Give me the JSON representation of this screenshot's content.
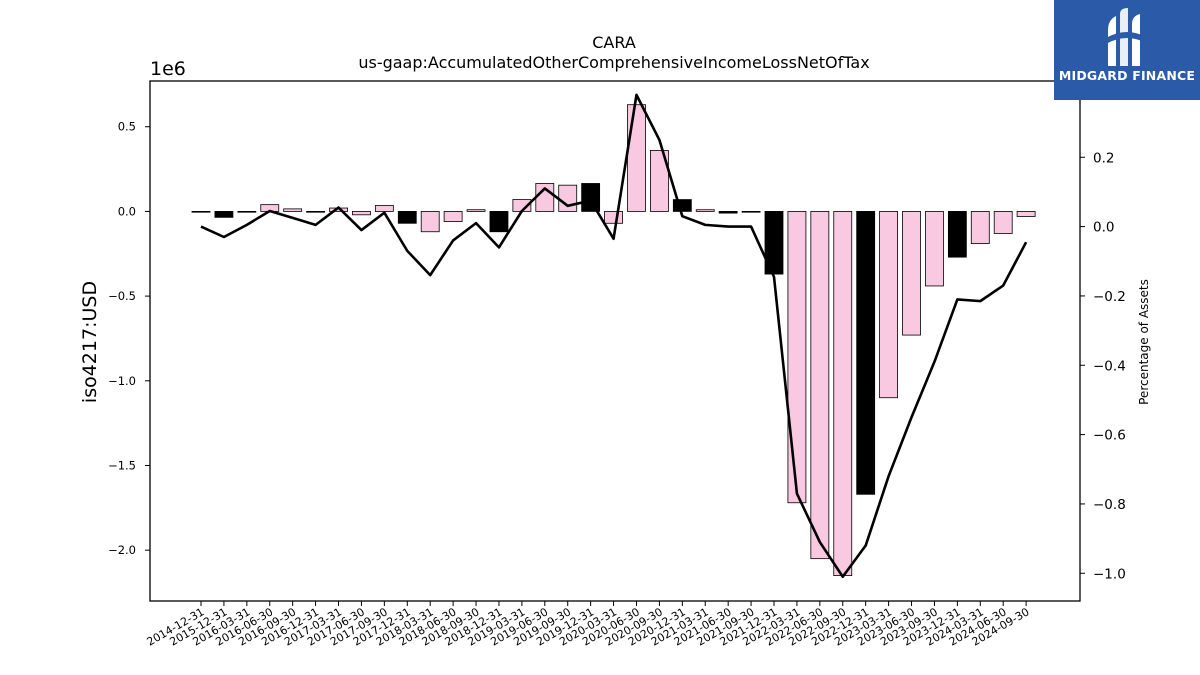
{
  "chart_data": {
    "type": "bar+line",
    "title": "CARA",
    "subtitle": "us-gaap:AccumulatedOtherComprehensiveIncomeLossNetOfTax",
    "ylabel": "iso4217:USD",
    "y2label": "Percentage of Assets",
    "y_offset_label": "1e6",
    "ylim": [
      -2.3,
      0.77
    ],
    "y2lim": [
      -1.08,
      0.42
    ],
    "yticks": [
      0.5,
      0.0,
      -0.5,
      -1.0,
      -1.5,
      -2.0
    ],
    "y2ticks": [
      0.2,
      0.0,
      -0.2,
      -0.4,
      -0.6,
      -0.8,
      -1.0
    ],
    "categories": [
      "2014-12-31",
      "2015-12-31",
      "2016-03-31",
      "2016-06-30",
      "2016-09-30",
      "2016-12-31",
      "2017-03-31",
      "2017-06-30",
      "2017-09-30",
      "2017-12-31",
      "2018-03-31",
      "2018-06-30",
      "2018-09-30",
      "2018-12-31",
      "2019-03-31",
      "2019-06-30",
      "2019-09-30",
      "2019-12-31",
      "2020-03-31",
      "2020-06-30",
      "2020-09-30",
      "2020-12-31",
      "2021-03-31",
      "2021-06-30",
      "2021-09-30",
      "2021-12-31",
      "2022-03-31",
      "2022-06-30",
      "2022-09-30",
      "2022-12-31",
      "2023-03-31",
      "2023-06-30",
      "2023-09-30",
      "2023-12-31",
      "2024-03-31",
      "2024-06-30",
      "2024-09-30"
    ],
    "values": [
      0.0,
      -0.035,
      0.0,
      0.04,
      0.015,
      0.0,
      0.02,
      -0.02,
      0.035,
      -0.07,
      -0.12,
      -0.06,
      0.01,
      -0.12,
      0.07,
      0.165,
      0.155,
      0.165,
      -0.07,
      0.63,
      0.36,
      0.07,
      0.01,
      -0.01,
      0.0,
      -0.37,
      -1.72,
      -2.05,
      -2.15,
      -1.67,
      -1.1,
      -0.73,
      -0.44,
      -0.27,
      -0.19,
      -0.13,
      -0.03
    ],
    "bar_fill": [
      "pink",
      "black",
      "pink",
      "pink",
      "pink",
      "pink",
      "pink",
      "pink",
      "pink",
      "black",
      "pink",
      "pink",
      "pink",
      "black",
      "pink",
      "pink",
      "pink",
      "black",
      "pink",
      "pink",
      "pink",
      "black",
      "pink",
      "black",
      "pink",
      "black",
      "pink",
      "pink",
      "pink",
      "black",
      "pink",
      "pink",
      "pink",
      "black",
      "pink",
      "pink",
      "pink"
    ],
    "line_values": [
      0.0,
      -0.03,
      0.005,
      0.045,
      0.025,
      0.005,
      0.055,
      -0.01,
      0.04,
      -0.07,
      -0.14,
      -0.04,
      0.01,
      -0.06,
      0.045,
      0.11,
      0.06,
      0.075,
      -0.035,
      0.38,
      0.25,
      0.03,
      0.005,
      0.0,
      0.0,
      -0.145,
      -0.77,
      -0.91,
      -1.01,
      -0.92,
      -0.72,
      -0.55,
      -0.39,
      -0.21,
      -0.215,
      -0.17,
      -0.045
    ],
    "colors": {
      "pink": "#f9c9e1",
      "black": "#000000",
      "line": "#000000",
      "edge": "#000000"
    },
    "grid": false
  },
  "logo": {
    "text": "MIDGARD FINANCE",
    "bg": "#2b5aa8"
  }
}
